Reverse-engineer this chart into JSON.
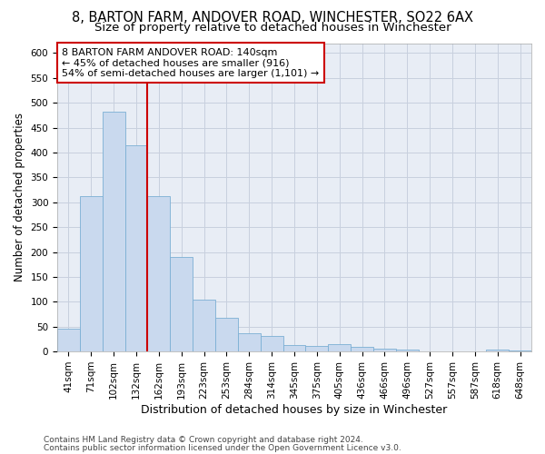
{
  "title1": "8, BARTON FARM, ANDOVER ROAD, WINCHESTER, SO22 6AX",
  "title2": "Size of property relative to detached houses in Winchester",
  "xlabel": "Distribution of detached houses by size in Winchester",
  "ylabel": "Number of detached properties",
  "categories": [
    "41sqm",
    "71sqm",
    "102sqm",
    "132sqm",
    "162sqm",
    "193sqm",
    "223sqm",
    "253sqm",
    "284sqm",
    "314sqm",
    "345sqm",
    "375sqm",
    "405sqm",
    "436sqm",
    "466sqm",
    "496sqm",
    "527sqm",
    "557sqm",
    "587sqm",
    "618sqm",
    "648sqm"
  ],
  "values": [
    45,
    312,
    482,
    415,
    313,
    190,
    105,
    68,
    37,
    31,
    13,
    11,
    14,
    9,
    6,
    3,
    1,
    1,
    0,
    4,
    2
  ],
  "bar_color": "#c9d9ee",
  "bar_edge_color": "#7bafd4",
  "grid_color": "#c8d0de",
  "background_color": "#e8edf5",
  "vline_x_index": 3,
  "vline_color": "#cc0000",
  "annotation_line1": "8 BARTON FARM ANDOVER ROAD: 140sqm",
  "annotation_line2": "← 45% of detached houses are smaller (916)",
  "annotation_line3": "54% of semi-detached houses are larger (1,101) →",
  "annotation_box_color": "#ffffff",
  "annotation_box_edge_color": "#cc0000",
  "ylim": [
    0,
    620
  ],
  "yticks": [
    0,
    50,
    100,
    150,
    200,
    250,
    300,
    350,
    400,
    450,
    500,
    550,
    600
  ],
  "footer1": "Contains HM Land Registry data © Crown copyright and database right 2024.",
  "footer2": "Contains public sector information licensed under the Open Government Licence v3.0.",
  "title1_fontsize": 10.5,
  "title2_fontsize": 9.5,
  "tick_fontsize": 7.5,
  "xlabel_fontsize": 9,
  "ylabel_fontsize": 8.5,
  "annotation_fontsize": 8,
  "footer_fontsize": 6.5
}
